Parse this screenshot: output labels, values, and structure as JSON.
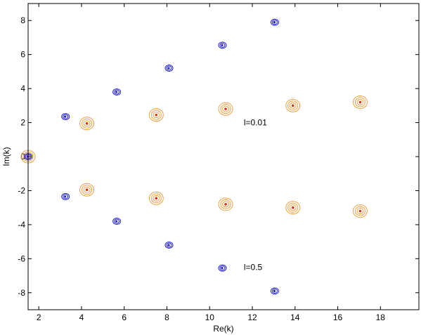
{
  "chart_data": {
    "type": "scatter",
    "xlabel": "Re(k)",
    "ylabel": "Im(k)",
    "xlim": [
      1.5,
      19.8
    ],
    "ylim": [
      -9,
      9
    ],
    "xticks": [
      2,
      4,
      6,
      8,
      10,
      12,
      14,
      16,
      18
    ],
    "yticks": [
      -8,
      -6,
      -4,
      -2,
      0,
      2,
      4,
      6,
      8
    ],
    "grid": false,
    "colors": {
      "blue_series": "#1f1fd6",
      "orange_series": "#f0a040",
      "orange_core": "#e03010"
    },
    "series": [
      {
        "marker": "blue-concentric-rings",
        "points": [
          {
            "x": 1.5,
            "y": 0.0
          },
          {
            "x": 3.25,
            "y": 2.35
          },
          {
            "x": 3.25,
            "y": -2.35
          },
          {
            "x": 5.65,
            "y": 3.8
          },
          {
            "x": 5.65,
            "y": -3.8
          },
          {
            "x": 8.1,
            "y": 5.2
          },
          {
            "x": 8.1,
            "y": -5.2
          },
          {
            "x": 10.6,
            "y": 6.55
          },
          {
            "x": 10.6,
            "y": -6.55
          },
          {
            "x": 13.05,
            "y": 7.9
          },
          {
            "x": 13.05,
            "y": -7.9
          }
        ]
      },
      {
        "marker": "orange-concentric-rings",
        "points": [
          {
            "x": 1.5,
            "y": 0.0
          },
          {
            "x": 4.25,
            "y": 1.95
          },
          {
            "x": 4.25,
            "y": -1.95
          },
          {
            "x": 7.5,
            "y": 2.45
          },
          {
            "x": 7.5,
            "y": -2.45
          },
          {
            "x": 10.75,
            "y": 2.8
          },
          {
            "x": 10.75,
            "y": -2.8
          },
          {
            "x": 13.9,
            "y": 3.0
          },
          {
            "x": 13.9,
            "y": -3.0
          },
          {
            "x": 17.05,
            "y": 3.2
          },
          {
            "x": 17.05,
            "y": -3.2
          }
        ]
      }
    ],
    "annotations": [
      {
        "text": "l=0.01",
        "x": 11.6,
        "y": 2.0
      },
      {
        "text": "l=0.5",
        "x": 11.6,
        "y": -6.5
      }
    ]
  }
}
